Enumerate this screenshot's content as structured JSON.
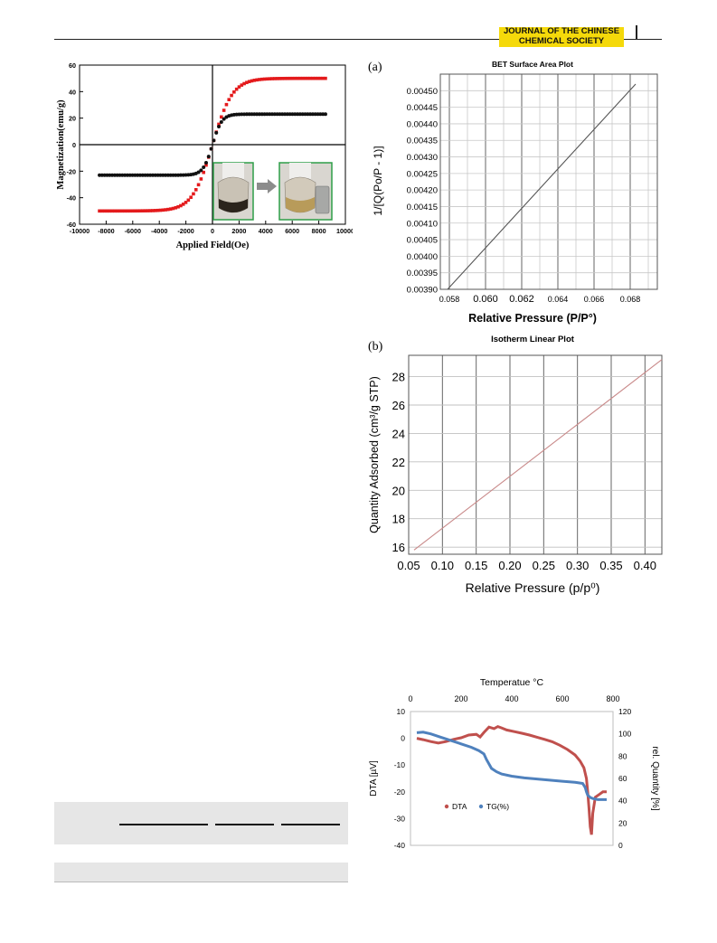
{
  "header": {
    "journal_line1": "JOURNAL OF THE CHINESE",
    "journal_line2": "CHEMICAL SOCIETY"
  },
  "figures": {
    "magnetization": {
      "xlabel": "Applied Field(Oe)",
      "ylabel": "Magnetization(emu/g)",
      "xticks": [
        "-10000",
        "-8000",
        "-6000",
        "-4000",
        "-2000",
        "0",
        "2000",
        "4000",
        "6000",
        "8000",
        "10000"
      ],
      "yticks": [
        "60",
        "40",
        "20",
        "0",
        "-20",
        "-40",
        "-60"
      ]
    },
    "bet": {
      "panel": "(a)",
      "title": "BET Surface Area Plot",
      "xlabel": "Relative Pressure (P/P°)",
      "ylabel": "1/[Q(Po/P - 1)]",
      "xticks": [
        "0.058",
        "0.060",
        "0.062",
        "0.064",
        "0.066",
        "0.068"
      ],
      "yticks": [
        "0.00450",
        "0.00445",
        "0.00440",
        "0.00435",
        "0.00430",
        "0.00425",
        "0.00420",
        "0.00415",
        "0.00410",
        "0.00405",
        "0.00400",
        "0.00395",
        "0.00390"
      ]
    },
    "isotherm": {
      "panel": "(b)",
      "title": "Isotherm Linear Plot",
      "xlabel": "Relative Pressure (p/p⁰)",
      "ylabel": "Quantity Adsorbed (cm³/g STP)",
      "xticks": [
        "0.05",
        "0.10",
        "0.15",
        "0.20",
        "0.25",
        "0.30",
        "0.35",
        "0.40"
      ],
      "yticks": [
        "28",
        "26",
        "24",
        "22",
        "20",
        "18",
        "16"
      ]
    },
    "thermal": {
      "title": "Temperatue °C",
      "ylabel_left": "DTA [µV]",
      "ylabel_right": "rel. Quantity [%]",
      "xticks": [
        "0",
        "200",
        "400",
        "600",
        "800"
      ],
      "yticks_left": [
        "10",
        "0",
        "-10",
        "-20",
        "-30",
        "-40"
      ],
      "yticks_right": [
        "120",
        "100",
        "80",
        "60",
        "40",
        "20",
        "0"
      ]
    }
  },
  "chart_data": [
    {
      "type": "scatter",
      "xlabel": "Applied Field(Oe)",
      "ylabel": "Magnetization(emu/g)",
      "xlim": [
        -10000,
        10000
      ],
      "ylim": [
        -60,
        60
      ],
      "grid": false,
      "series": [
        {
          "color": "#e41a1c",
          "saturation": 50,
          "k": 1500,
          "xmin": -8500,
          "xmax": 8500,
          "n": 90
        },
        {
          "color": "#111111",
          "saturation": 23,
          "k": 700,
          "xmin": -8500,
          "xmax": 8500,
          "n": 90
        }
      ]
    },
    {
      "type": "line",
      "title": "BET Surface Area Plot",
      "xlabel": "Relative Pressure (P/P°)",
      "ylabel": "1/[Q(Po/P - 1)]",
      "xlim": [
        0.0575,
        0.0695
      ],
      "ylim": [
        0.0039,
        0.00455
      ],
      "grid": true,
      "series": [
        {
          "color": "#555555",
          "x": [
            0.0579,
            0.0683
          ],
          "y": [
            0.0039,
            0.00452
          ]
        }
      ]
    },
    {
      "type": "line",
      "title": "Isotherm Linear Plot",
      "xlabel": "Relative Pressure (p/p⁰)",
      "ylabel": "Quantity Adsorbed (cm³/g STP)",
      "xlim": [
        0.05,
        0.425
      ],
      "ylim": [
        15.5,
        29.5
      ],
      "grid": true,
      "series": [
        {
          "color": "#c98a8a",
          "x": [
            0.058,
            0.425
          ],
          "y": [
            15.8,
            29.2
          ]
        }
      ]
    },
    {
      "type": "line",
      "title": "Temperatue °C",
      "ylabel_left": "DTA [µV]",
      "ylabel_right": "rel. Quantity [%]",
      "xlim": [
        0,
        800
      ],
      "ylim_left": [
        -40,
        10
      ],
      "ylim_right": [
        0,
        120
      ],
      "legend_position": "lower-left",
      "series": [
        {
          "name": "DTA",
          "axis": "left",
          "color": "#c0504d",
          "x": [
            25,
            50,
            80,
            110,
            140,
            170,
            200,
            230,
            260,
            275,
            290,
            310,
            330,
            345,
            360,
            380,
            410,
            440,
            470,
            500,
            530,
            560,
            590,
            620,
            650,
            670,
            685,
            695,
            700,
            705,
            710,
            715,
            720,
            730,
            745,
            760,
            775
          ],
          "y": [
            0,
            -0.5,
            -1.2,
            -1.8,
            -1.2,
            -0.4,
            0.2,
            1.2,
            1.5,
            0.5,
            2.2,
            4.2,
            3.6,
            4.4,
            3.9,
            3.1,
            2.5,
            1.9,
            1.2,
            0.4,
            -0.4,
            -1.3,
            -2.6,
            -4.2,
            -6.2,
            -8.5,
            -11,
            -15,
            -20,
            -26,
            -33,
            -36,
            -28,
            -22,
            -21,
            -20,
            -20
          ]
        },
        {
          "name": "TG(%)",
          "axis": "right",
          "color": "#4f81bd",
          "x": [
            25,
            50,
            80,
            120,
            160,
            200,
            240,
            270,
            290,
            300,
            320,
            340,
            360,
            400,
            450,
            500,
            550,
            600,
            650,
            680,
            690,
            695,
            700,
            710,
            720,
            740,
            760,
            775
          ],
          "y": [
            101,
            101.5,
            100,
            97,
            94,
            91,
            88,
            85,
            82,
            77,
            69,
            66,
            64,
            62,
            60.5,
            59.5,
            58.5,
            57.5,
            56.5,
            55.5,
            52,
            48,
            45,
            43,
            42,
            41,
            41,
            41
          ]
        }
      ]
    }
  ]
}
